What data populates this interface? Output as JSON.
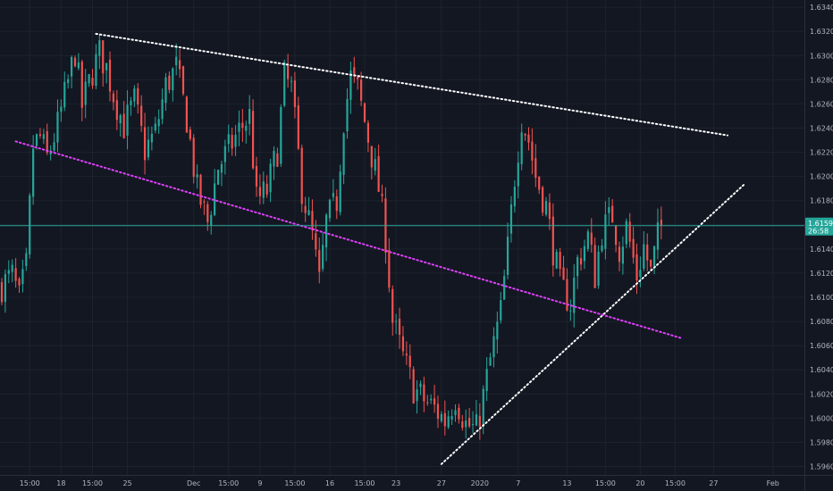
{
  "chart_data": {
    "type": "candlestick",
    "y_axis": {
      "range": [
        1.5953,
        1.6346
      ],
      "ticks": [
        1.596,
        1.598,
        1.6,
        1.602,
        1.604,
        1.606,
        1.608,
        1.61,
        1.612,
        1.614,
        1.616,
        1.618,
        1.62,
        1.622,
        1.624,
        1.626,
        1.628,
        1.63,
        1.632,
        1.634
      ],
      "tick_labels": [
        "1.59600",
        "1.59800",
        "1.60000",
        "1.60200",
        "1.60400",
        "1.60600",
        "1.60800",
        "1.61000",
        "1.61200",
        "1.61400",
        "1.61600",
        "1.61800",
        "1.62000",
        "1.62200",
        "1.62400",
        "1.62600",
        "1.62800",
        "1.63000",
        "1.63200",
        "1.63400"
      ]
    },
    "x_axis": {
      "index_range": [
        0,
        229
      ],
      "tick_labels": [
        {
          "label": "15:00",
          "i": 8
        },
        {
          "label": "18",
          "i": 17
        },
        {
          "label": "15:00",
          "i": 26
        },
        {
          "label": "25",
          "i": 36
        },
        {
          "label": "Dec",
          "i": 55
        },
        {
          "label": "15:00",
          "i": 65
        },
        {
          "label": "9",
          "i": 74
        },
        {
          "label": "15:00",
          "i": 84
        },
        {
          "label": "16",
          "i": 94
        },
        {
          "label": "15:00",
          "i": 104
        },
        {
          "label": "23",
          "i": 113
        },
        {
          "label": "27",
          "i": 126
        },
        {
          "label": "2020",
          "i": 137
        },
        {
          "label": "7",
          "i": 148
        },
        {
          "label": "13",
          "i": 162
        },
        {
          "label": "15:00",
          "i": 173
        },
        {
          "label": "20",
          "i": 183
        },
        {
          "label": "15:00",
          "i": 193
        },
        {
          "label": "27",
          "i": 204
        },
        {
          "label": "Feb",
          "i": 221
        }
      ]
    },
    "grid": true,
    "colors": {
      "background": "#131722",
      "grid": "#1e222d",
      "up": "#26a69a",
      "down": "#ef5350",
      "price_line": "#26a69a",
      "badge": "#26a69a"
    },
    "current_price": {
      "value": 1.61593,
      "label": "1.61593",
      "countdown": "26:58"
    },
    "trendlines": [
      {
        "name": "upper-resistance",
        "color": "#ffffff",
        "style": "dotted",
        "from": [
          27,
          1.6318
        ],
        "to": [
          208,
          1.6234
        ]
      },
      {
        "name": "lower-support-uptrend",
        "color": "#ffffff",
        "style": "dotted",
        "from": [
          126,
          1.5962
        ],
        "to": [
          213,
          1.6194
        ]
      },
      {
        "name": "magenta-channel",
        "color": "#e040fb",
        "style": "dotted",
        "from": [
          4,
          1.6229
        ],
        "to": [
          195,
          1.6066
        ]
      }
    ],
    "close_anchors": [
      [
        0,
        1.611
      ],
      [
        3,
        1.6118
      ],
      [
        5,
        1.6098
      ],
      [
        7,
        1.6125
      ],
      [
        9,
        1.6225
      ],
      [
        11,
        1.6232
      ],
      [
        13,
        1.6215
      ],
      [
        16,
        1.6242
      ],
      [
        19,
        1.6278
      ],
      [
        21,
        1.6303
      ],
      [
        23,
        1.6258
      ],
      [
        26,
        1.6287
      ],
      [
        28,
        1.6302
      ],
      [
        30,
        1.629
      ],
      [
        32,
        1.6268
      ],
      [
        35,
        1.6242
      ],
      [
        38,
        1.6262
      ],
      [
        41,
        1.6222
      ],
      [
        44,
        1.6236
      ],
      [
        47,
        1.6275
      ],
      [
        50,
        1.629
      ],
      [
        53,
        1.6248
      ],
      [
        56,
        1.6188
      ],
      [
        59,
        1.6162
      ],
      [
        62,
        1.6208
      ],
      [
        65,
        1.6222
      ],
      [
        68,
        1.6238
      ],
      [
        71,
        1.625
      ],
      [
        73,
        1.618
      ],
      [
        76,
        1.6188
      ],
      [
        79,
        1.6222
      ],
      [
        81,
        1.6282
      ],
      [
        83,
        1.6272
      ],
      [
        86,
        1.619
      ],
      [
        89,
        1.615
      ],
      [
        91,
        1.6112
      ],
      [
        93,
        1.6162
      ],
      [
        96,
        1.618
      ],
      [
        98,
        1.6248
      ],
      [
        100,
        1.6282
      ],
      [
        102,
        1.6272
      ],
      [
        105,
        1.6232
      ],
      [
        108,
        1.619
      ],
      [
        110,
        1.615
      ],
      [
        112,
        1.608
      ],
      [
        115,
        1.605
      ],
      [
        118,
        1.6025
      ],
      [
        121,
        1.6015
      ],
      [
        124,
        1.6008
      ],
      [
        127,
        1.5998
      ],
      [
        130,
        1.6018
      ],
      [
        133,
        1.5995
      ],
      [
        136,
        1.599
      ],
      [
        138,
        1.6018
      ],
      [
        140,
        1.6048
      ],
      [
        143,
        1.6088
      ],
      [
        145,
        1.614
      ],
      [
        147,
        1.62
      ],
      [
        149,
        1.6248
      ],
      [
        151,
        1.623
      ],
      [
        153,
        1.62
      ],
      [
        156,
        1.6175
      ],
      [
        158,
        1.614
      ],
      [
        160,
        1.611
      ],
      [
        163,
        1.6095
      ],
      [
        165,
        1.613
      ],
      [
        168,
        1.615
      ],
      [
        170,
        1.6118
      ],
      [
        172,
        1.6155
      ],
      [
        175,
        1.6168
      ],
      [
        177,
        1.614
      ],
      [
        179,
        1.6158
      ],
      [
        182,
        1.6118
      ],
      [
        184,
        1.6142
      ],
      [
        186,
        1.612
      ],
      [
        188,
        1.615
      ],
      [
        189,
        1.6159
      ]
    ]
  }
}
